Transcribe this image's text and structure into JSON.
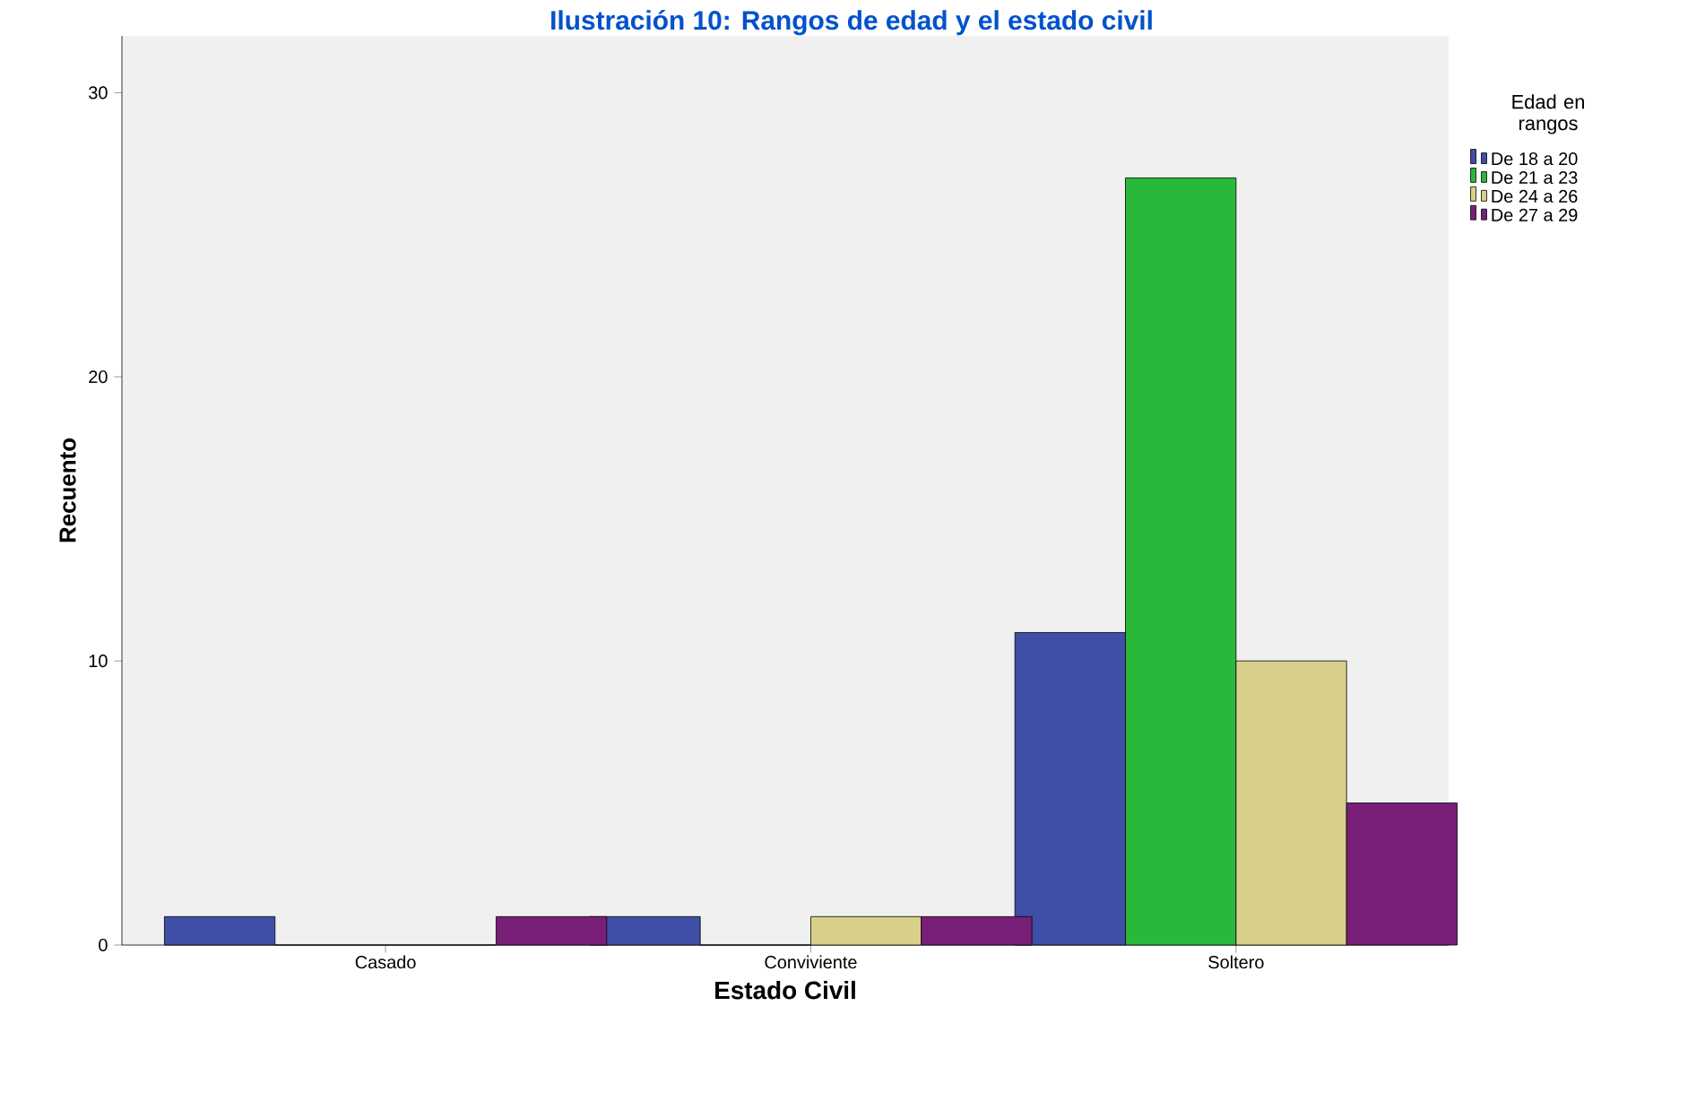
{
  "chart_data": {
    "type": "bar",
    "title": "Ilustración 10: Rangos de edad y el estado civil",
    "xlabel": "Estado Civil",
    "ylabel": "Recuento",
    "legend_title": "Edad en rangos",
    "legend": "top right",
    "categories": [
      "Casado",
      "Conviviente",
      "Soltero"
    ],
    "series": [
      {
        "name": "De 18 a 20",
        "color": "#3f4fa8",
        "values": [
          1,
          1,
          11
        ]
      },
      {
        "name": "De 21 a 23",
        "color": "#2ab83a",
        "values": [
          0,
          0,
          27
        ]
      },
      {
        "name": "De 24 a 26",
        "color": "#d8d08a",
        "values": [
          0,
          1,
          10
        ]
      },
      {
        "name": "De 27 a 29",
        "color": "#7a1f78",
        "values": [
          1,
          1,
          5
        ]
      }
    ],
    "ylim": [
      0,
      32
    ],
    "yticks": [
      0,
      10,
      20,
      30
    ],
    "grid": false
  }
}
